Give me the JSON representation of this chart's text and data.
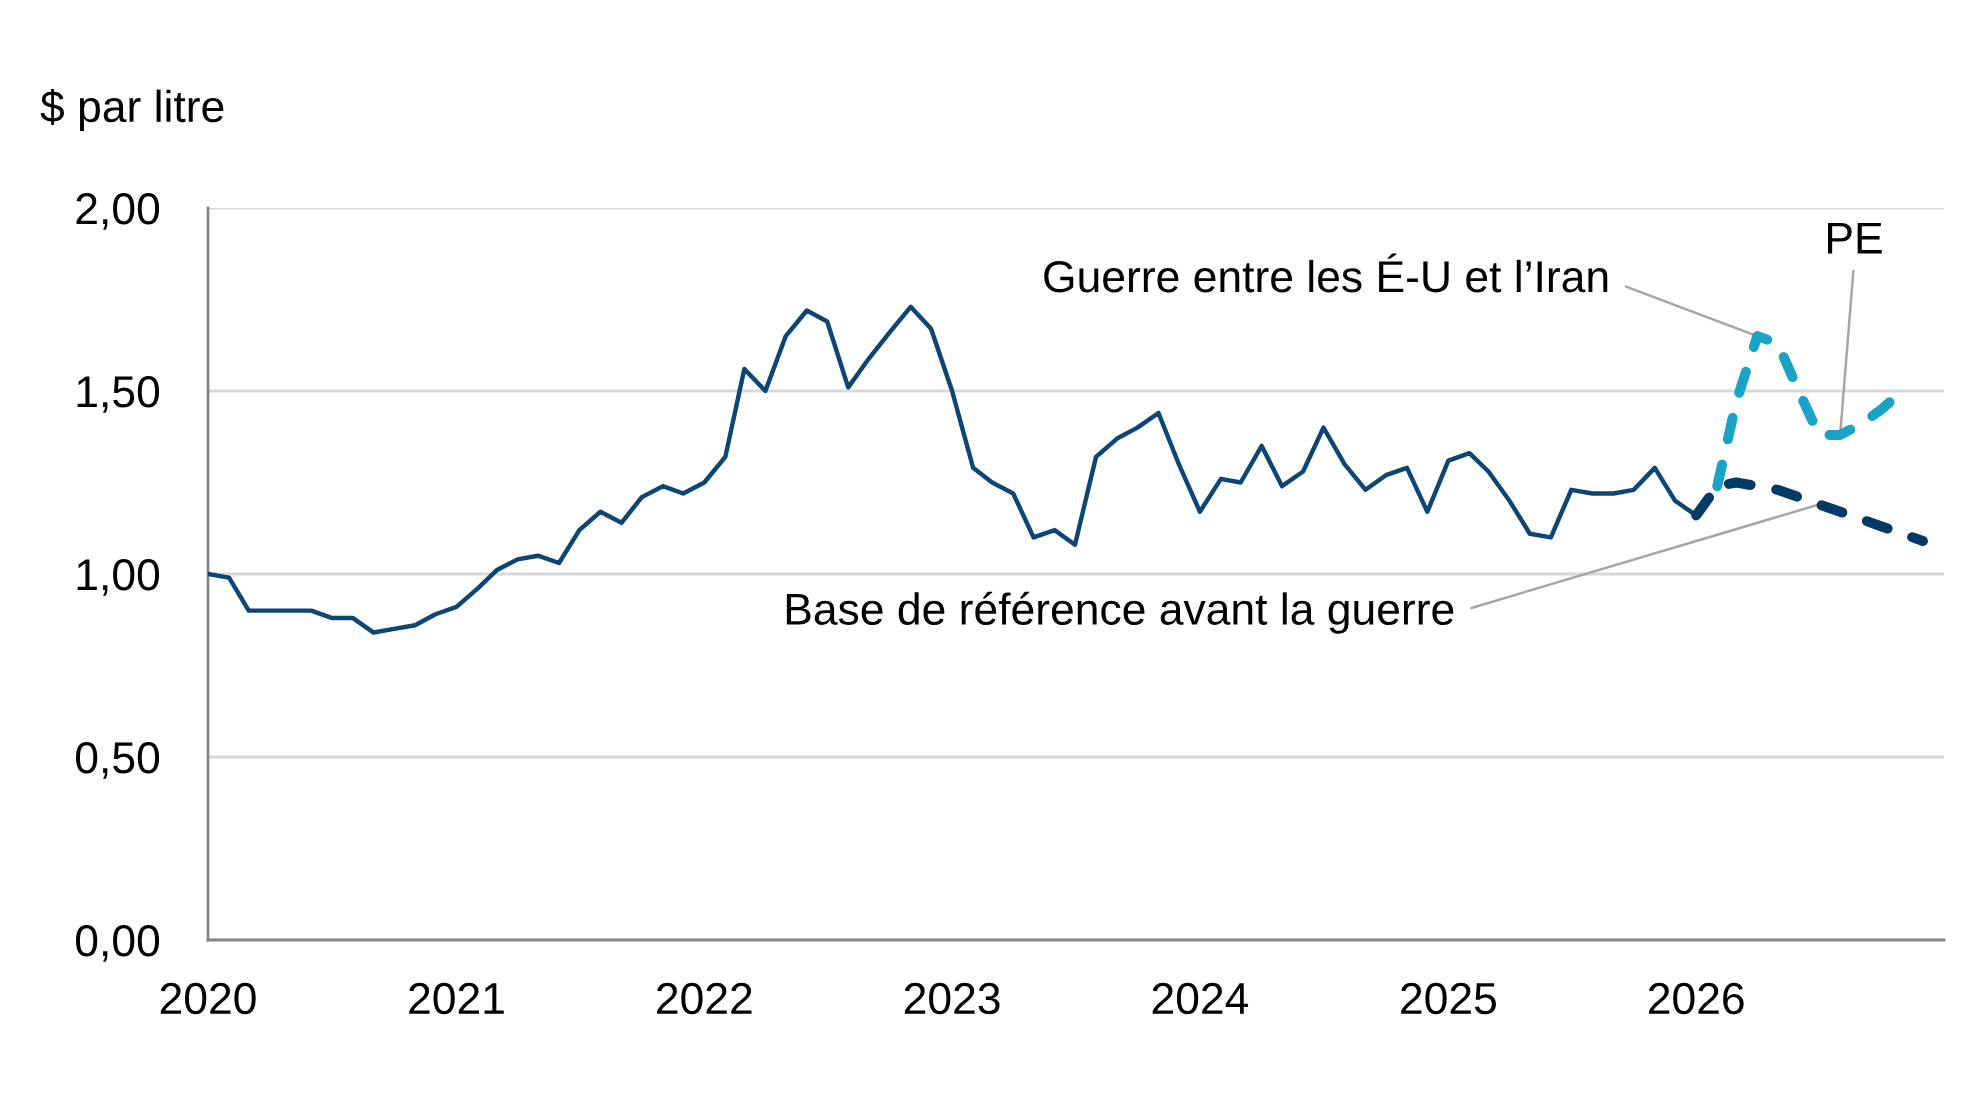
{
  "chart_data": {
    "type": "line",
    "ylabel": "$ par litre",
    "xlim": [
      "2020-01",
      "2027-01"
    ],
    "xticks": [
      "2020",
      "2021",
      "2022",
      "2023",
      "2024",
      "2025",
      "2026"
    ],
    "ylim": [
      0,
      2
    ],
    "yticks": [
      {
        "value": 0,
        "label": "0,00"
      },
      {
        "value": 0.5,
        "label": "0,50"
      },
      {
        "value": 1,
        "label": "1,00"
      },
      {
        "value": 1.5,
        "label": "1,50"
      },
      {
        "value": 2,
        "label": "2,00"
      }
    ],
    "grid": "y",
    "series": [
      {
        "color": "#0e4673",
        "line_style": "solid",
        "x": [
          "2020-01",
          "2020-02",
          "2020-03",
          "2020-04",
          "2020-05",
          "2020-06",
          "2020-07",
          "2020-08",
          "2020-09",
          "2020-10",
          "2020-11",
          "2020-12",
          "2021-01",
          "2021-02",
          "2021-03",
          "2021-04",
          "2021-05",
          "2021-06",
          "2021-07",
          "2021-08",
          "2021-09",
          "2021-10",
          "2021-11",
          "2021-12",
          "2022-01",
          "2022-02",
          "2022-03",
          "2022-04",
          "2022-05",
          "2022-06",
          "2022-07",
          "2022-08",
          "2022-09",
          "2022-10",
          "2022-11",
          "2022-12",
          "2023-01",
          "2023-02",
          "2023-03",
          "2023-04",
          "2023-05",
          "2023-06",
          "2023-07",
          "2023-08",
          "2023-09",
          "2023-10",
          "2023-11",
          "2023-12",
          "2024-01",
          "2024-02",
          "2024-03",
          "2024-04",
          "2024-05",
          "2024-06",
          "2024-07",
          "2024-08",
          "2024-09",
          "2024-10",
          "2024-11",
          "2024-12",
          "2025-01",
          "2025-02",
          "2025-03",
          "2025-04",
          "2025-05",
          "2025-06",
          "2025-07",
          "2025-08",
          "2025-09",
          "2025-10",
          "2025-11",
          "2025-12",
          "2026-01"
        ],
        "values": [
          1.0,
          0.99,
          0.9,
          0.9,
          0.9,
          0.9,
          0.88,
          0.88,
          0.84,
          0.85,
          0.86,
          0.89,
          0.91,
          0.96,
          1.01,
          1.04,
          1.05,
          1.03,
          1.12,
          1.17,
          1.14,
          1.21,
          1.24,
          1.22,
          1.25,
          1.32,
          1.56,
          1.5,
          1.65,
          1.72,
          1.69,
          1.51,
          1.59,
          1.66,
          1.73,
          1.67,
          1.5,
          1.29,
          1.25,
          1.22,
          1.1,
          1.12,
          1.08,
          1.32,
          1.37,
          1.4,
          1.44,
          1.3,
          1.17,
          1.26,
          1.25,
          1.35,
          1.24,
          1.28,
          1.4,
          1.3,
          1.23,
          1.27,
          1.29,
          1.17,
          1.31,
          1.33,
          1.28,
          1.2,
          1.11,
          1.1,
          1.23,
          1.22,
          1.22,
          1.23,
          1.29,
          1.2,
          1.16
        ]
      },
      {
        "color": "#063a66",
        "line_style": "dashed",
        "x": [
          "2026-01",
          "2026-02",
          "2026-03",
          "2026-04",
          "2026-05",
          "2026-06",
          "2026-07",
          "2026-08",
          "2026-09",
          "2026-10",
          "2026-11",
          "2026-12"
        ],
        "values": [
          1.16,
          1.24,
          1.25,
          1.24,
          1.23,
          1.21,
          1.19,
          1.17,
          1.15,
          1.13,
          1.11,
          1.09
        ]
      },
      {
        "color": "#1ba3c6",
        "line_style": "dashed",
        "x": [
          "2026-02",
          "2026-03",
          "2026-04",
          "2026-05",
          "2026-06",
          "2026-07",
          "2026-08",
          "2026-09",
          "2026-10",
          "2026-11"
        ],
        "values": [
          1.24,
          1.47,
          1.65,
          1.63,
          1.5,
          1.38,
          1.38,
          1.41,
          1.45,
          1.5
        ]
      }
    ],
    "annotations": [
      {
        "text": "Guerre entre les É-U et l’Iran",
        "x": "2026-04",
        "y": 1.65
      },
      {
        "text": "PE",
        "x": "2026-08",
        "y": 1.38
      },
      {
        "text": "Base de référence avant la guerre",
        "x": "2026-07",
        "y": 1.19
      }
    ]
  }
}
